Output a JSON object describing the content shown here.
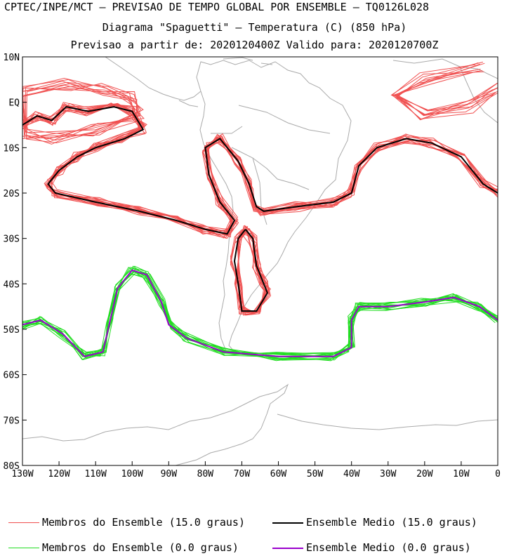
{
  "header": {
    "line1": "CPTEC/INPE/MCT – PREVISAO DE TEMPO GLOBAL POR ENSEMBLE – TQ0126L028",
    "line2": "Diagrama \"Spaguetti\" – Temperatura (C) (850 hPa)",
    "line3": "Previsao a partir de: 2020120400Z  Valido para: 2020120700Z"
  },
  "map": {
    "lon_range": [
      -130,
      0
    ],
    "lat_range": [
      -80,
      10
    ],
    "lat_ticks": [
      "10N",
      "EQ",
      "10S",
      "20S",
      "30S",
      "40S",
      "50S",
      "60S",
      "70S",
      "80S"
    ],
    "lon_ticks": [
      "130W",
      "120W",
      "110W",
      "100W",
      "90W",
      "80W",
      "70W",
      "60W",
      "50W",
      "40W",
      "30W",
      "20W",
      "10W",
      "0"
    ],
    "colors": {
      "member_15": "#f05050",
      "mean_15": "#000000",
      "member_0": "#22dd22",
      "mean_0": "#9900cc",
      "coast": "#aaaaaa"
    }
  },
  "legend": {
    "members_15": "Membros do Ensemble (15.0 graus)",
    "mean_15": "Ensemble Medio (15.0 graus)",
    "members_0": "Membros do Ensemble (0.0 graus)",
    "mean_0": "Ensemble Medio (0.0 graus)"
  }
}
